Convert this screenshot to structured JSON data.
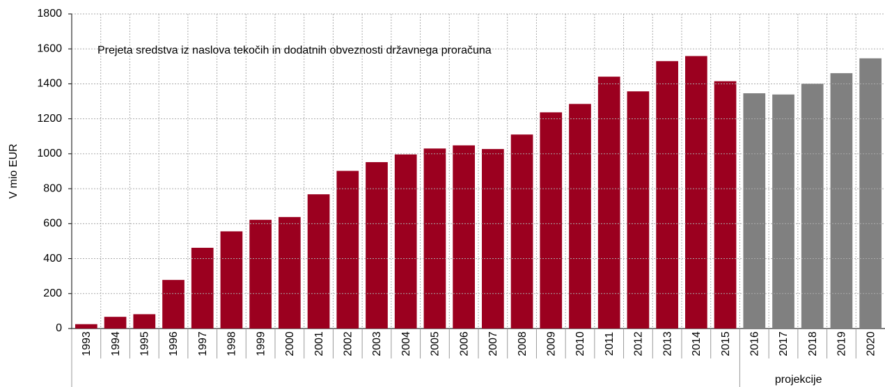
{
  "chart_data": {
    "type": "bar",
    "annotation": "Prejeta sredstva iz naslova tekočih in dodatnih obveznosti državnega proračuna",
    "y_label": "V mio EUR",
    "group_label": "projekcije",
    "categories": [
      "1993",
      "1994",
      "1995",
      "1996",
      "1997",
      "1998",
      "1999",
      "2000",
      "2001",
      "2002",
      "2003",
      "2004",
      "2005",
      "2006",
      "2007",
      "2008",
      "2009",
      "2010",
      "2011",
      "2012",
      "2013",
      "2014",
      "2015",
      "2016",
      "2017",
      "2018",
      "2019",
      "2020"
    ],
    "values": [
      25,
      67,
      82,
      278,
      462,
      556,
      622,
      638,
      768,
      902,
      952,
      996,
      1030,
      1048,
      1027,
      1110,
      1237,
      1285,
      1441,
      1357,
      1530,
      1559,
      1415,
      1346,
      1339,
      1401,
      1461,
      1546
    ],
    "colors": [
      "#9b001f",
      "#9b001f",
      "#9b001f",
      "#9b001f",
      "#9b001f",
      "#9b001f",
      "#9b001f",
      "#9b001f",
      "#9b001f",
      "#9b001f",
      "#9b001f",
      "#9b001f",
      "#9b001f",
      "#9b001f",
      "#9b001f",
      "#9b001f",
      "#9b001f",
      "#9b001f",
      "#9b001f",
      "#9b001f",
      "#9b001f",
      "#9b001f",
      "#9b001f",
      "#808080",
      "#808080",
      "#808080",
      "#808080",
      "#808080"
    ],
    "ylim": [
      0,
      1800
    ],
    "yticks": [
      0,
      200,
      400,
      600,
      800,
      1000,
      1200,
      1400,
      1600,
      1800
    ],
    "grid": true
  }
}
